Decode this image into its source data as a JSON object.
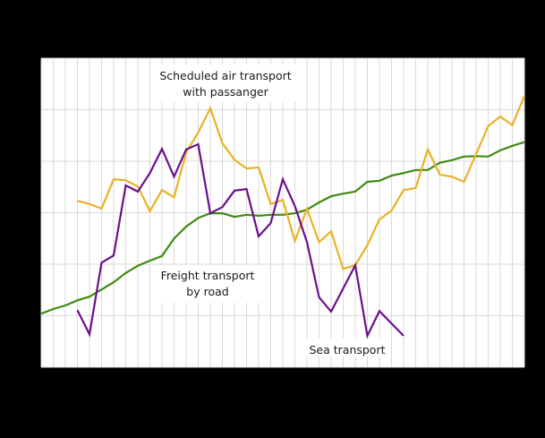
{
  "chart_data": {
    "type": "line",
    "title": "",
    "xlabel": "",
    "ylabel": "",
    "x_points": 41,
    "ylim": [
      0,
      60
    ],
    "grid": true,
    "legend": "inline annotations",
    "note": "Axis tick labels not visible (rendered on black background); values are in relative gridline units (each horizontal gridline = 10).",
    "series": [
      {
        "name": "Freight transport by road",
        "color": "#3f8a12",
        "start_index": 0,
        "values": [
          10.4,
          11.3,
          12.0,
          13.0,
          13.7,
          15.1,
          16.5,
          18.3,
          19.7,
          20.7,
          21.6,
          25.0,
          27.3,
          29.0,
          29.9,
          29.9,
          29.2,
          29.6,
          29.4,
          29.6,
          29.6,
          29.9,
          30.6,
          32.0,
          33.2,
          33.7,
          34.1,
          36.0,
          36.2,
          37.2,
          37.7,
          38.3,
          38.3,
          39.7,
          40.2,
          40.9,
          41.0,
          40.9,
          42.1,
          43.0,
          43.7
        ]
      },
      {
        "name": "Scheduled air transport with passanger",
        "color": "#e9b227",
        "start_index": 3,
        "values": [
          32.3,
          31.7,
          30.8,
          36.5,
          36.3,
          35.1,
          30.3,
          34.4,
          33.0,
          41.7,
          45.6,
          50.3,
          43.5,
          40.3,
          38.6,
          38.8,
          31.7,
          32.5,
          24.5,
          30.8,
          24.3,
          26.4,
          19.1,
          19.8,
          23.7,
          28.7,
          30.4,
          34.4,
          34.8,
          42.3,
          37.4,
          37.0,
          36.0,
          41.4,
          46.8,
          48.7,
          47.0,
          52.7
        ]
      },
      {
        "name": "Sea transport",
        "color": "#6a0f8e",
        "start_index": 3,
        "values": [
          11.1,
          6.4,
          20.3,
          21.7,
          35.3,
          34.1,
          37.7,
          42.4,
          37.0,
          42.3,
          43.3,
          29.9,
          31.1,
          34.3,
          34.6,
          25.4,
          28.0,
          36.5,
          31.3,
          24.3,
          13.6,
          10.8,
          15.3,
          19.8,
          6.1,
          10.9,
          8.5,
          6.1
        ]
      }
    ],
    "annotations": [
      {
        "text_line1": "Scheduled air transport",
        "text_line2": "with passanger"
      },
      {
        "text_line1": "Freight transport",
        "text_line2": "by road"
      },
      {
        "text_line1": "Sea transport"
      }
    ]
  },
  "labels": {
    "air_1": "Scheduled air transport",
    "air_2": "with passanger",
    "road_1": "Freight transport",
    "road_2": "by road",
    "sea_1": "Sea transport"
  },
  "colors": {
    "background": "#000000",
    "plot_bg": "#ffffff",
    "grid": "#d9d9d9"
  }
}
